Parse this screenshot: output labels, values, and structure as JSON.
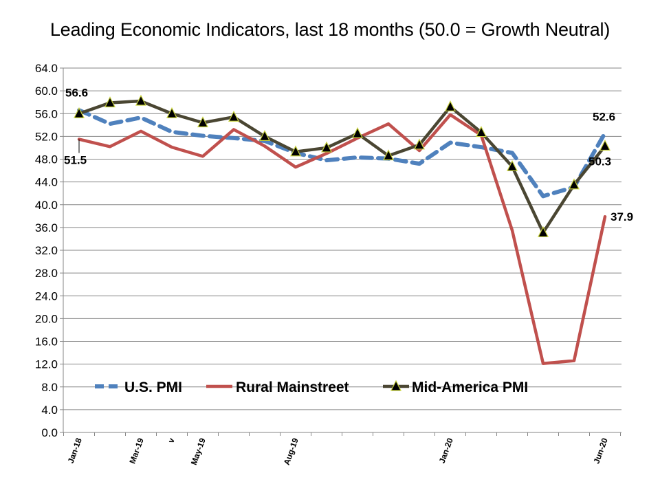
{
  "title": "Leading Economic Indicators, last 18 months (50.0 = Growth Neutral)",
  "chart_data": {
    "type": "line",
    "title": "Leading Economic Indicators, last 18 months (50.0 = Growth Neutral)",
    "xlabel": "",
    "ylabel": "",
    "ylim": [
      0,
      64
    ],
    "ytick_step": 4,
    "ytick_labels": [
      "0.0",
      "4.0",
      "8.0",
      "12.0",
      "16.0",
      "20.0",
      "24.0",
      "28.0",
      "32.0",
      "36.0",
      "40.0",
      "44.0",
      "48.0",
      "52.0",
      "56.0",
      "60.0",
      "64.0"
    ],
    "grid": "horizontal",
    "legend_position": "bottom-center",
    "x_tick_labels": [
      "Jan-18",
      "",
      "Mar-19",
      "v",
      "May-19",
      "",
      "",
      "Aug-19",
      "",
      "",
      "",
      "",
      "Jan-20",
      "",
      "",
      "",
      "",
      "Jun-20"
    ],
    "series": [
      {
        "name": "U.S. PMI",
        "color": "#4F81BD",
        "style": "dashed",
        "values": [
          56.6,
          54.2,
          55.3,
          52.8,
          52.1,
          51.7,
          51.2,
          49.1,
          47.8,
          48.3,
          48.1,
          47.2,
          50.9,
          50.1,
          49.1,
          41.5,
          43.1,
          52.6
        ]
      },
      {
        "name": "Rural Mainstreet",
        "color": "#C0504D",
        "style": "solid",
        "values": [
          51.5,
          50.2,
          52.9,
          50.1,
          48.5,
          53.2,
          50.3,
          46.6,
          49.0,
          51.7,
          54.2,
          49.5,
          55.8,
          52.2,
          35.5,
          12.1,
          12.6,
          37.9
        ]
      },
      {
        "name": "Mid-America PMI",
        "color": "#4A4632",
        "style": "solid",
        "marker": "triangle",
        "values": [
          56.0,
          57.9,
          58.2,
          56.0,
          54.4,
          55.4,
          52.0,
          49.3,
          50.0,
          52.5,
          48.6,
          50.5,
          57.2,
          52.7,
          46.7,
          35.1,
          43.5,
          50.3
        ]
      }
    ],
    "annotations": [
      {
        "series": 0,
        "index": 0,
        "text": "56.6"
      },
      {
        "series": 1,
        "index": 0,
        "text": "51.5"
      },
      {
        "series": 0,
        "index": 17,
        "text": "52.6"
      },
      {
        "series": 2,
        "index": 17,
        "text": "50.3"
      },
      {
        "series": 1,
        "index": 17,
        "text": "37.9"
      }
    ]
  }
}
